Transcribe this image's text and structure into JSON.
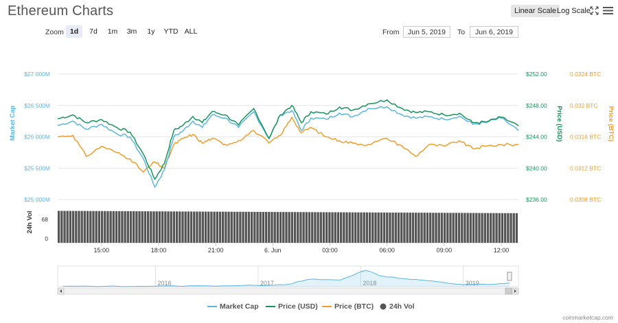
{
  "title": "Ethereum Charts",
  "toolbar": {
    "linear_scale": "Linear Scale",
    "log_scale": "Log Scale",
    "fullscreen_icon": "expand-arrows-icon",
    "menu_icon": "hamburger-menu-icon"
  },
  "zoom": {
    "label": "Zoom",
    "options": [
      "1d",
      "7d",
      "1m",
      "3m",
      "1y",
      "YTD",
      "ALL"
    ],
    "selected": "1d"
  },
  "range": {
    "from_label": "From",
    "from_value": "Jun 5, 2019",
    "to_label": "To",
    "to_value": "Jun 6, 2019"
  },
  "colors": {
    "market_cap": "#5bb5e3",
    "price_usd": "#15945b",
    "price_btc": "#f39c2a",
    "volume": "#555555"
  },
  "chart_data": {
    "type": "line",
    "axes": {
      "market_cap": {
        "title": "Market Cap",
        "ticks": [
          "$27 000M",
          "$26 500M",
          "$26 000M",
          "$25 500M",
          "$25 000M"
        ],
        "range": [
          25000,
          27000
        ]
      },
      "price_usd": {
        "title": "Price (USD)",
        "ticks": [
          "$252.00",
          "$248.00",
          "$244.00",
          "$240.00",
          "$236.00"
        ],
        "range": [
          236,
          252
        ]
      },
      "price_btc": {
        "title": "Price (BTC)",
        "ticks": [
          "0.0324 BTC",
          "0.032 BTC",
          "0.0316 BTC",
          "0.0312 BTC",
          "0.0308 BTC"
        ],
        "range": [
          0.0308,
          0.0324
        ]
      },
      "volume": {
        "title": "24h Vol",
        "ticks": [
          "68",
          "0"
        ]
      }
    },
    "x_ticks": [
      "15:00",
      "18:00",
      "21:00",
      "6. Jun",
      "03:00",
      "06:00",
      "09:00",
      "12:00"
    ],
    "x_hours": [
      0,
      3,
      6,
      9,
      12,
      15,
      18,
      21
    ],
    "x_range_hours": [
      -2.3,
      21.9
    ],
    "series": [
      {
        "name": "Market Cap",
        "key": "market_cap",
        "x": [
          -2.3,
          -1.5,
          -0.8,
          0,
          0.8,
          1.5,
          2.2,
          2.8,
          3.3,
          3.8,
          4.3,
          4.8,
          5.3,
          5.8,
          6.5,
          7.2,
          8.0,
          8.8,
          9.4,
          10.0,
          10.5,
          11.0,
          11.8,
          12.5,
          13.2,
          14.0,
          15.0,
          15.8,
          16.5,
          17.2,
          18.0,
          18.8,
          19.5,
          20.2,
          21.0,
          21.9
        ],
        "y": [
          26180,
          26250,
          26120,
          26200,
          26050,
          26000,
          25650,
          25200,
          25470,
          26000,
          26100,
          26250,
          26150,
          26350,
          26300,
          26150,
          26400,
          25970,
          26350,
          26420,
          26100,
          26300,
          26280,
          26380,
          26320,
          26450,
          26480,
          26350,
          26300,
          26320,
          26280,
          26330,
          26200,
          26230,
          26300,
          26100
        ]
      },
      {
        "name": "Price (USD)",
        "key": "price_usd",
        "x": [
          -2.3,
          -1.5,
          -0.8,
          0,
          0.8,
          1.5,
          2.2,
          2.8,
          3.3,
          3.8,
          4.3,
          4.8,
          5.3,
          5.8,
          6.5,
          7.2,
          8.0,
          8.8,
          9.4,
          10.0,
          10.5,
          11.0,
          11.8,
          12.5,
          13.2,
          14.0,
          15.0,
          15.8,
          16.5,
          17.2,
          18.0,
          18.8,
          19.5,
          20.2,
          21.0,
          21.9
        ],
        "y": [
          246.3,
          246.8,
          245.8,
          246.2,
          245.2,
          244.6,
          241.8,
          238.6,
          240.6,
          244.8,
          245.5,
          246.6,
          245.8,
          247.2,
          246.8,
          245.5,
          247.6,
          243.8,
          246.8,
          248.0,
          245.8,
          247.2,
          246.9,
          247.8,
          247.4,
          248.2,
          248.7,
          247.6,
          247.1,
          247.2,
          246.8,
          247.0,
          245.8,
          245.9,
          246.5,
          245.4
        ]
      },
      {
        "name": "Price (BTC)",
        "key": "price_btc",
        "x": [
          -2.3,
          -1.5,
          -0.8,
          0,
          0.8,
          1.5,
          2.2,
          2.8,
          3.3,
          3.8,
          4.3,
          4.8,
          5.3,
          5.8,
          6.5,
          7.2,
          8.0,
          8.8,
          9.4,
          10.0,
          10.5,
          11.0,
          11.8,
          12.5,
          13.2,
          14.0,
          15.0,
          15.8,
          16.5,
          17.2,
          18.0,
          18.8,
          19.5,
          20.2,
          21.0,
          21.9
        ],
        "y": [
          0.0316,
          0.03162,
          0.03135,
          0.03148,
          0.0314,
          0.03132,
          0.03115,
          0.03128,
          0.0312,
          0.0315,
          0.03158,
          0.03163,
          0.03152,
          0.03158,
          0.0315,
          0.03155,
          0.03168,
          0.03152,
          0.03162,
          0.03185,
          0.03165,
          0.03172,
          0.0316,
          0.03155,
          0.03152,
          0.0315,
          0.03158,
          0.03148,
          0.03135,
          0.0315,
          0.03148,
          0.03155,
          0.03145,
          0.03148,
          0.0315,
          0.0315
        ]
      },
      {
        "name": "24h Vol",
        "key": "volume",
        "type": "bar",
        "x_from": -2.3,
        "x_to": 21.9,
        "bars": 160,
        "level": 0.95
      }
    ],
    "navigator": {
      "ticks": [
        "2016",
        "2017",
        "2018",
        "2019"
      ],
      "tick_years": [
        2016,
        2017,
        2018,
        2019
      ],
      "year_range": [
        2015.1,
        2019.45
      ],
      "x": [
        2015.1,
        2015.5,
        2016.0,
        2016.5,
        2017.0,
        2017.3,
        2017.5,
        2017.8,
        2018.0,
        2018.05,
        2018.2,
        2018.4,
        2018.6,
        2018.9,
        2019.0,
        2019.3,
        2019.45
      ],
      "y": [
        0.02,
        0.02,
        0.03,
        0.05,
        0.07,
        0.15,
        0.45,
        0.4,
        0.9,
        1.0,
        0.65,
        0.5,
        0.4,
        0.18,
        0.12,
        0.15,
        0.22
      ]
    }
  },
  "legend": [
    {
      "label": "Market Cap",
      "color": "#5bb5e3",
      "marker": "line"
    },
    {
      "label": "Price (USD)",
      "color": "#15945b",
      "marker": "line"
    },
    {
      "label": "Price (BTC)",
      "color": "#f39c2a",
      "marker": "line"
    },
    {
      "label": "24h Vol",
      "color": "#555555",
      "marker": "dot"
    }
  ],
  "credit": "coinmarketcap.com"
}
